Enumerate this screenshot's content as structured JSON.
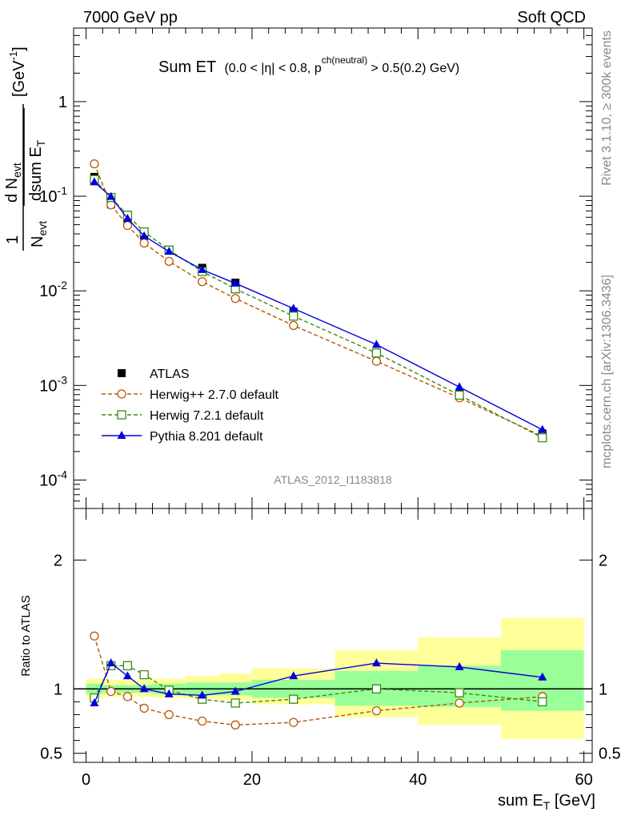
{
  "header": {
    "left": "7000 GeV pp",
    "right": "Soft QCD"
  },
  "side_labels": {
    "top": "Rivet 3.1.10, ≥ 300k events",
    "bottom": "mcplots.cern.ch [arXiv:1306.3436]"
  },
  "watermark": "ATLAS_2012_I1183818",
  "chart_data": [
    {
      "type": "line",
      "title": "Sum ET",
      "subtitle_parts": {
        "pre": "(0.0 < |η| < 0.8, p",
        "sup": "ch(neutral)",
        "post": " > 0.5(0.2) GeV)"
      },
      "ylabel_parts": {
        "one": "1",
        "n_evt": "N",
        "evt_sub": "evt",
        "d_n": "d N",
        "dsum": "dsum E",
        "t_sub": "T",
        "unit": "[GeV",
        "unit_sup": "-1",
        "unit_close": "]"
      },
      "yscale": "log",
      "ylim": [
        5e-05,
        6
      ],
      "xlim": [
        -1.5,
        61
      ],
      "y_tick_labels": [
        {
          "value": 1,
          "label": "1"
        },
        {
          "value": 0.1,
          "base": "10",
          "exp": "-1"
        },
        {
          "value": 0.01,
          "base": "10",
          "exp": "-2"
        },
        {
          "value": 0.001,
          "base": "10",
          "exp": "-3"
        },
        {
          "value": 0.0001,
          "base": "10",
          "exp": "-4"
        }
      ],
      "series": [
        {
          "name": "ATLAS",
          "color": "#000000",
          "marker": "filled-square",
          "x": [
            1,
            3,
            5,
            7,
            10,
            14,
            18,
            25,
            35,
            45,
            55
          ],
          "y": [
            0.16,
            0.082,
            0.053,
            0.038,
            0.027,
            0.0175,
            0.0122,
            0.006,
            0.0022,
            0.00082,
            0.00031
          ]
        },
        {
          "name": "Herwig++ 2.7.0 default",
          "color": "#b35806",
          "marker": "open-circle",
          "dash": true,
          "x": [
            1,
            3,
            5,
            7,
            10,
            14,
            18,
            25,
            35,
            45,
            55
          ],
          "y": [
            0.22,
            0.081,
            0.049,
            0.032,
            0.0205,
            0.0125,
            0.0083,
            0.0043,
            0.0018,
            0.00074,
            0.00029
          ]
        },
        {
          "name": "Herwig 7.2.1 default",
          "color": "#3a8a10",
          "marker": "open-square",
          "dash": true,
          "x": [
            1,
            3,
            5,
            7,
            10,
            14,
            18,
            25,
            35,
            45,
            55
          ],
          "y": [
            0.15,
            0.097,
            0.063,
            0.042,
            0.027,
            0.016,
            0.0105,
            0.0054,
            0.0022,
            0.00079,
            0.00028
          ]
        },
        {
          "name": "Pythia 8.201 default",
          "color": "#0000e0",
          "marker": "filled-triangle",
          "x": [
            1,
            3,
            5,
            7,
            10,
            14,
            18,
            25,
            35,
            45,
            55
          ],
          "y": [
            0.141,
            0.099,
            0.058,
            0.038,
            0.026,
            0.0167,
            0.012,
            0.0065,
            0.0027,
            0.00096,
            0.00034
          ]
        }
      ]
    },
    {
      "type": "line",
      "ylabel": "Ratio to ATLAS",
      "xlabel_parts": {
        "main": "sum E",
        "sub": "T",
        "unit": " [GeV]"
      },
      "ylim": [
        0.43,
        2.4
      ],
      "xlim": [
        -1.5,
        61
      ],
      "y_ticks": [
        0.5,
        1,
        2
      ],
      "y_tick_labels": [
        "0.5",
        "1",
        "2"
      ],
      "x_ticks": [
        0,
        20,
        40,
        60
      ],
      "x_tick_labels": [
        "0",
        "20",
        "40",
        "60"
      ],
      "reference_line": 1,
      "bands": {
        "outer_color": "#ffff99",
        "inner_color": "#99ff99",
        "bins": [
          {
            "x0": 0,
            "x1": 2,
            "outer": [
              0.93,
              1.08
            ],
            "inner": [
              0.96,
              1.04
            ]
          },
          {
            "x0": 2,
            "x1": 4,
            "outer": [
              0.94,
              1.07
            ],
            "inner": [
              0.97,
              1.03
            ]
          },
          {
            "x0": 4,
            "x1": 6,
            "outer": [
              0.94,
              1.07
            ],
            "inner": [
              0.97,
              1.03
            ]
          },
          {
            "x0": 6,
            "x1": 8,
            "outer": [
              0.94,
              1.07
            ],
            "inner": [
              0.97,
              1.03
            ]
          },
          {
            "x0": 8,
            "x1": 12,
            "outer": [
              0.93,
              1.08
            ],
            "inner": [
              0.96,
              1.04
            ]
          },
          {
            "x0": 12,
            "x1": 16,
            "outer": [
              0.92,
              1.1
            ],
            "inner": [
              0.95,
              1.05
            ]
          },
          {
            "x0": 16,
            "x1": 20,
            "outer": [
              0.91,
              1.12
            ],
            "inner": [
              0.95,
              1.05
            ]
          },
          {
            "x0": 20,
            "x1": 30,
            "outer": [
              0.88,
              1.16
            ],
            "inner": [
              0.93,
              1.07
            ]
          },
          {
            "x0": 30,
            "x1": 40,
            "outer": [
              0.78,
              1.3
            ],
            "inner": [
              0.87,
              1.14
            ]
          },
          {
            "x0": 40,
            "x1": 50,
            "outer": [
              0.72,
              1.4
            ],
            "inner": [
              0.86,
              1.18
            ]
          },
          {
            "x0": 50,
            "x1": 60,
            "outer": [
              0.61,
              1.55
            ],
            "inner": [
              0.83,
              1.3
            ]
          }
        ]
      },
      "series": [
        {
          "name": "Herwig++ 2.7.0 default",
          "color": "#b35806",
          "marker": "open-circle",
          "dash": true,
          "x": [
            1,
            3,
            5,
            7,
            10,
            14,
            18,
            25,
            35,
            45,
            55
          ],
          "y": [
            1.41,
            0.98,
            0.94,
            0.85,
            0.8,
            0.75,
            0.72,
            0.74,
            0.83,
            0.89,
            0.94
          ]
        },
        {
          "name": "Herwig 7.2.1 default",
          "color": "#3a8a10",
          "marker": "open-square",
          "dash": true,
          "x": [
            1,
            3,
            5,
            7,
            10,
            14,
            18,
            25,
            35,
            45,
            55
          ],
          "y": [
            0.93,
            1.18,
            1.18,
            1.11,
            0.99,
            0.92,
            0.89,
            0.92,
            1.0,
            0.97,
            0.9
          ]
        },
        {
          "name": "Pythia 8.201 default",
          "color": "#0000e0",
          "marker": "filled-triangle",
          "x": [
            1,
            3,
            5,
            7,
            10,
            14,
            18,
            25,
            35,
            45,
            55
          ],
          "y": [
            0.89,
            1.2,
            1.1,
            1.0,
            0.96,
            0.95,
            0.98,
            1.1,
            1.2,
            1.17,
            1.09
          ]
        }
      ]
    }
  ]
}
